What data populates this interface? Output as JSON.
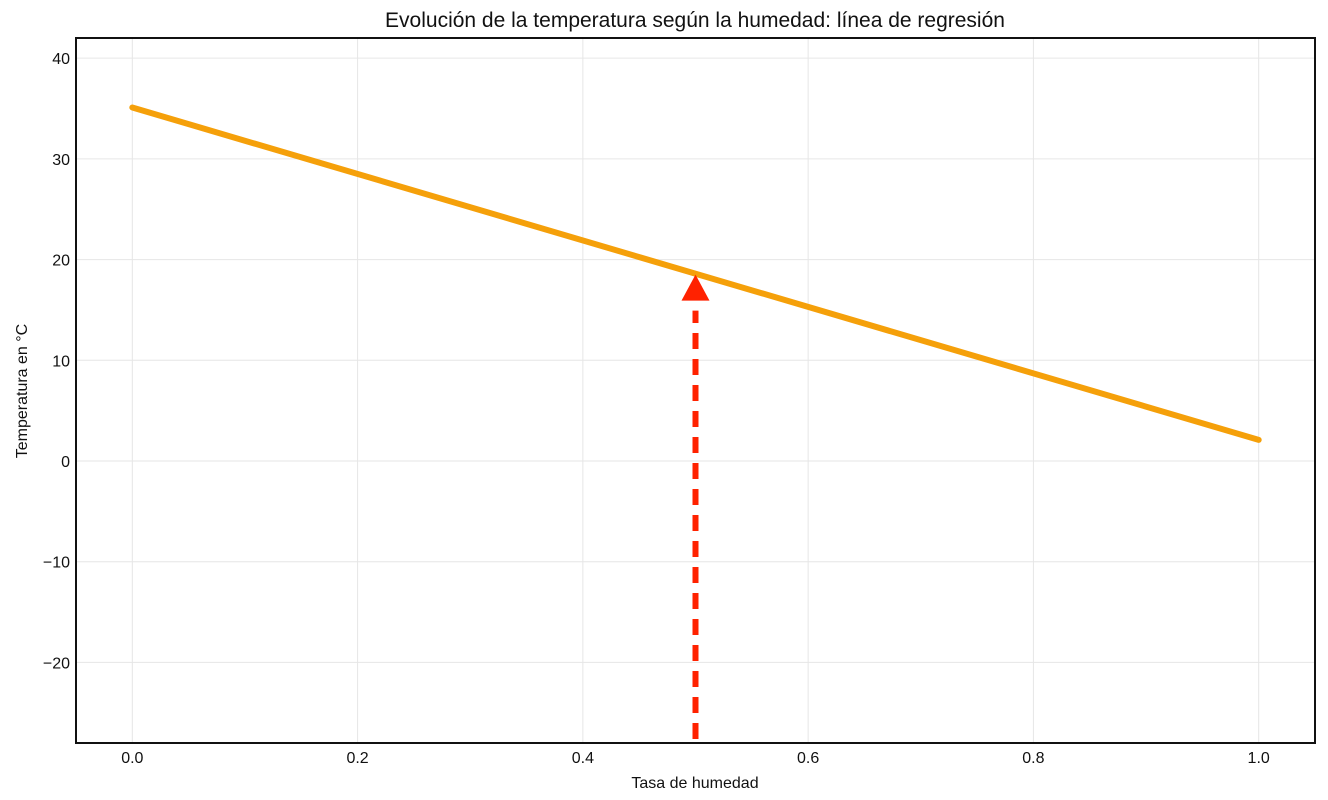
{
  "chart_data": {
    "type": "line",
    "title": "Evolución de la temperatura según la humedad: línea de regresión",
    "xlabel": "Tasa de humedad",
    "ylabel": "Temperatura en °C",
    "xlim": [
      -0.05,
      1.05
    ],
    "ylim": [
      -28,
      42
    ],
    "xticks": [
      0.0,
      0.2,
      0.4,
      0.6,
      0.8,
      1.0
    ],
    "xtick_labels": [
      "0.0",
      "0.2",
      "0.4",
      "0.6",
      "0.8",
      "1.0"
    ],
    "yticks": [
      -20,
      -10,
      0,
      10,
      20,
      30,
      40
    ],
    "ytick_labels": [
      "−20",
      "−10",
      "0",
      "10",
      "20",
      "30",
      "40"
    ],
    "grid": true,
    "series": [
      {
        "x": [
          0.0,
          1.0
        ],
        "y": [
          35.1,
          2.1
        ],
        "color": "#f5a00a"
      }
    ],
    "annotations": [
      {
        "type": "dashed-arrow",
        "x": 0.5,
        "y_from": -28,
        "y_to": 18.5,
        "color": "#ff2200"
      }
    ]
  }
}
